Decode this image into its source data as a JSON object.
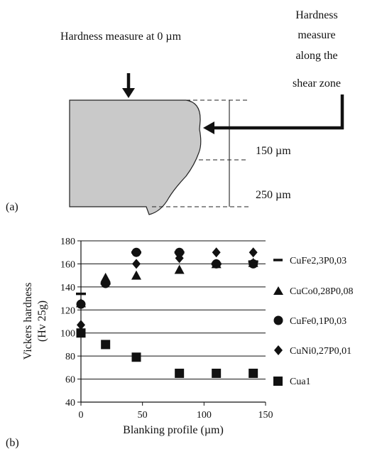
{
  "diagram": {
    "panel_label": "(a)",
    "top_label": "Hardness measure at 0 µm",
    "side_label_lines": [
      "Hardness",
      "measure",
      "along the",
      "shear zone"
    ],
    "depth_150": "150 µm",
    "depth_250": "250 µm"
  },
  "chart_data": {
    "panel_label": "(b)",
    "type": "scatter",
    "title": "",
    "xlabel": "Blanking profile (µm)",
    "ylabel_lines": [
      "Vickers hardness",
      "(Hv 25g)"
    ],
    "xlim": [
      0,
      150
    ],
    "ylim": [
      40,
      180
    ],
    "xticks": [
      0,
      50,
      100,
      150
    ],
    "yticks": [
      40,
      60,
      80,
      100,
      120,
      140,
      160,
      180
    ],
    "grid": "horizontal",
    "legend_position": "right",
    "series": [
      {
        "name": "CuFe2,3P0,03",
        "marker": "dash",
        "x": [
          0,
          20,
          45,
          80,
          110,
          140
        ],
        "y": [
          134,
          143,
          170,
          170,
          160,
          162
        ]
      },
      {
        "name": "CuCo0,28P0,08",
        "marker": "triangle",
        "x": [
          0,
          20,
          45,
          80,
          110,
          140
        ],
        "y": [
          126,
          148,
          150,
          155,
          160,
          161
        ]
      },
      {
        "name": "CuFe0,1P0,03",
        "marker": "circle",
        "x": [
          0,
          20,
          45,
          80,
          110,
          140
        ],
        "y": [
          125,
          143,
          170,
          170,
          160,
          160
        ]
      },
      {
        "name": "CuNi0,27P0,01",
        "marker": "diamond",
        "x": [
          0,
          20,
          45,
          80,
          110,
          140
        ],
        "y": [
          107,
          145,
          160,
          165,
          170,
          170
        ]
      },
      {
        "name": "Cua1",
        "marker": "square",
        "x": [
          0,
          20,
          45,
          80,
          110,
          140
        ],
        "y": [
          100,
          90,
          79,
          65,
          65,
          65
        ]
      }
    ]
  }
}
